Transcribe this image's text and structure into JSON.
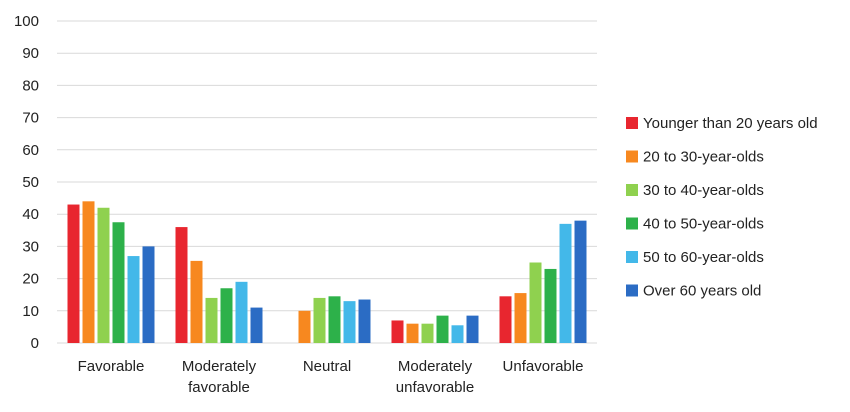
{
  "chart_data": {
    "type": "bar",
    "title": "",
    "xlabel": "",
    "ylabel": "",
    "ylim": [
      0,
      100
    ],
    "yticks": [
      0,
      10,
      20,
      30,
      40,
      50,
      60,
      70,
      80,
      90,
      100
    ],
    "grid": true,
    "legend_position": "right",
    "categories": [
      [
        "Favorable"
      ],
      [
        "Moderately",
        "favorable"
      ],
      [
        "Neutral"
      ],
      [
        "Moderately",
        "unfavorable"
      ],
      [
        "Unfavorable"
      ]
    ],
    "series": [
      {
        "name": "Younger than 20 years old",
        "color": "#e8262f",
        "values": [
          43,
          36,
          null,
          7,
          14.5
        ]
      },
      {
        "name": "20 to 30-year-olds",
        "color": "#f7881f",
        "values": [
          44,
          25.5,
          10,
          6,
          15.5
        ]
      },
      {
        "name": "30 to 40-year-olds",
        "color": "#8fd14f",
        "values": [
          42,
          14,
          14,
          6,
          25
        ]
      },
      {
        "name": "40 to 50-year-olds",
        "color": "#2db14a",
        "values": [
          37.5,
          17,
          14.5,
          8.5,
          23
        ]
      },
      {
        "name": "50 to 60-year-olds",
        "color": "#43b8e9",
        "values": [
          27,
          19,
          13,
          5.5,
          37
        ]
      },
      {
        "name": "Over 60 years old",
        "color": "#2b6cc4",
        "values": [
          30,
          11,
          13.5,
          8.5,
          38
        ]
      }
    ]
  }
}
